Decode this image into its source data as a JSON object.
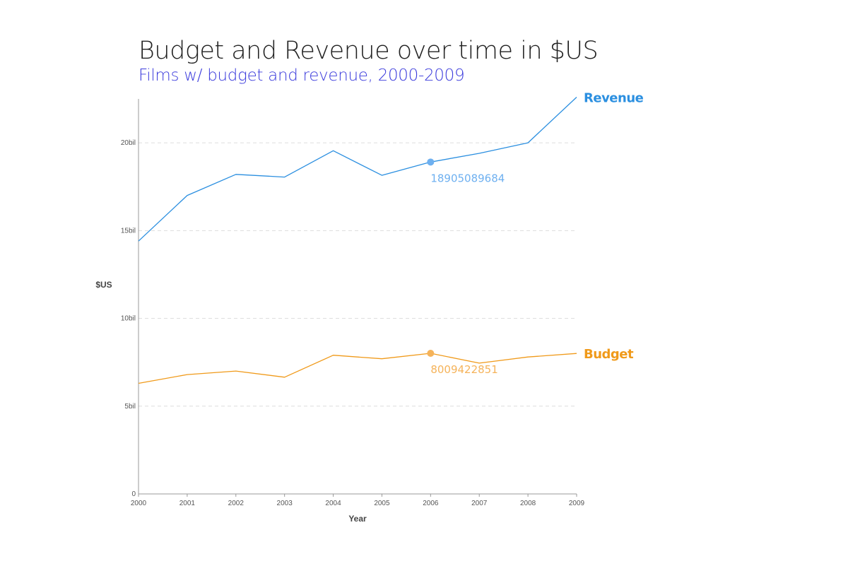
{
  "header": {
    "title": "Budget and Revenue over time in $US",
    "subtitle": "Films w/ budget and revenue, 2000-2009"
  },
  "colors": {
    "revenue": "#2b8fe0",
    "budget": "#f09a1a",
    "revenue_marker": "#6eb0f0",
    "budget_marker": "#f5b35a",
    "axis": "#999999",
    "grid": "#dddddd"
  },
  "chart_data": {
    "type": "line",
    "title": "Budget and Revenue over time in $US",
    "subtitle": "Films w/ budget and revenue, 2000-2009",
    "xlabel": "Year",
    "ylabel": "$US",
    "x": [
      2000,
      2001,
      2002,
      2003,
      2004,
      2005,
      2006,
      2007,
      2008,
      2009
    ],
    "x_tick_labels": [
      "2000",
      "2001",
      "2002",
      "2003",
      "2004",
      "2005",
      "2006",
      "2007",
      "2008",
      "2009"
    ],
    "ylim": [
      0,
      22500000000
    ],
    "y_ticks": [
      0,
      5000000000,
      10000000000,
      15000000000,
      20000000000
    ],
    "y_tick_labels": [
      "0",
      "5bil",
      "10bil",
      "15bil",
      "20bil"
    ],
    "grid": "horizontal dashed",
    "legend": "inline labels at line ends",
    "series": [
      {
        "name": "Revenue",
        "color": "#2b8fe0",
        "values": [
          14400000000,
          17000000000,
          18200000000,
          18050000000,
          19550000000,
          18150000000,
          18905089684,
          19400000000,
          20000000000,
          22600000000
        ],
        "highlight": {
          "x": 2006,
          "value": 18905089684,
          "label": "18905089684"
        }
      },
      {
        "name": "Budget",
        "color": "#f09a1a",
        "values": [
          6300000000,
          6800000000,
          7000000000,
          6650000000,
          7900000000,
          7700000000,
          8009422851,
          7450000000,
          7800000000,
          8000000000
        ],
        "highlight": {
          "x": 2006,
          "value": 8009422851,
          "label": "8009422851"
        }
      }
    ]
  }
}
